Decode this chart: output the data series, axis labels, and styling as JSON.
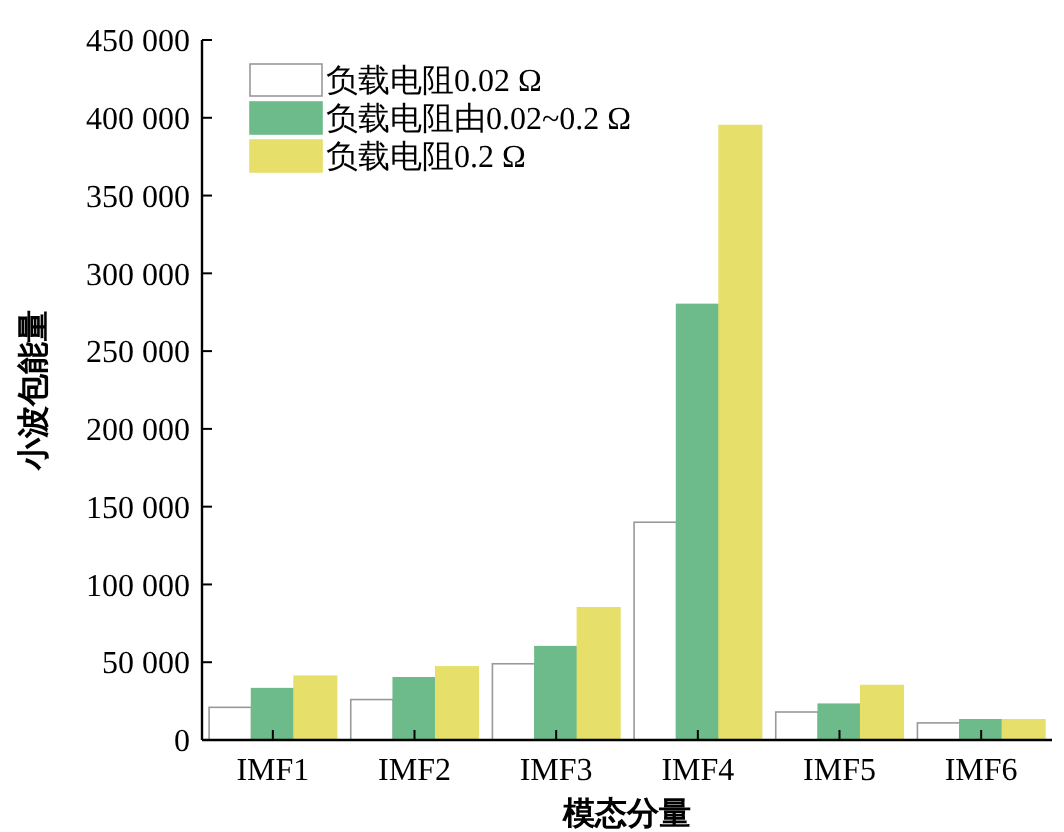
{
  "chart_data": {
    "type": "bar",
    "xlabel": "模态分量",
    "ylabel": "小波包能量",
    "categories": [
      "IMF1",
      "IMF2",
      "IMF3",
      "IMF4",
      "IMF5",
      "IMF6"
    ],
    "series": [
      {
        "name": "负载电阻0.02 Ω",
        "color": "#ffffff",
        "values": [
          21000,
          26000,
          49000,
          140000,
          18000,
          11000
        ]
      },
      {
        "name": "负载电阻由0.02~0.2 Ω",
        "color": "#6dbb8a",
        "values": [
          33000,
          40000,
          60000,
          280000,
          23000,
          13000
        ]
      },
      {
        "name": "负载电阻0.2 Ω",
        "color": "#e6df6a",
        "values": [
          41000,
          47000,
          85000,
          395000,
          35000,
          13000
        ]
      }
    ],
    "ylim": [
      0,
      450000
    ],
    "yticks": [
      {
        "value": 0,
        "label": "0"
      },
      {
        "value": 50000,
        "label": "50 000"
      },
      {
        "value": 100000,
        "label": "100 000"
      },
      {
        "value": 150000,
        "label": "150 000"
      },
      {
        "value": 200000,
        "label": "200 000"
      },
      {
        "value": 250000,
        "label": "250 000"
      },
      {
        "value": 300000,
        "label": "300 000"
      },
      {
        "value": 350000,
        "label": "350 000"
      },
      {
        "value": 400000,
        "label": "400 000"
      },
      {
        "value": 450000,
        "label": "450 000"
      }
    ],
    "legend": "top left",
    "grid": false
  }
}
